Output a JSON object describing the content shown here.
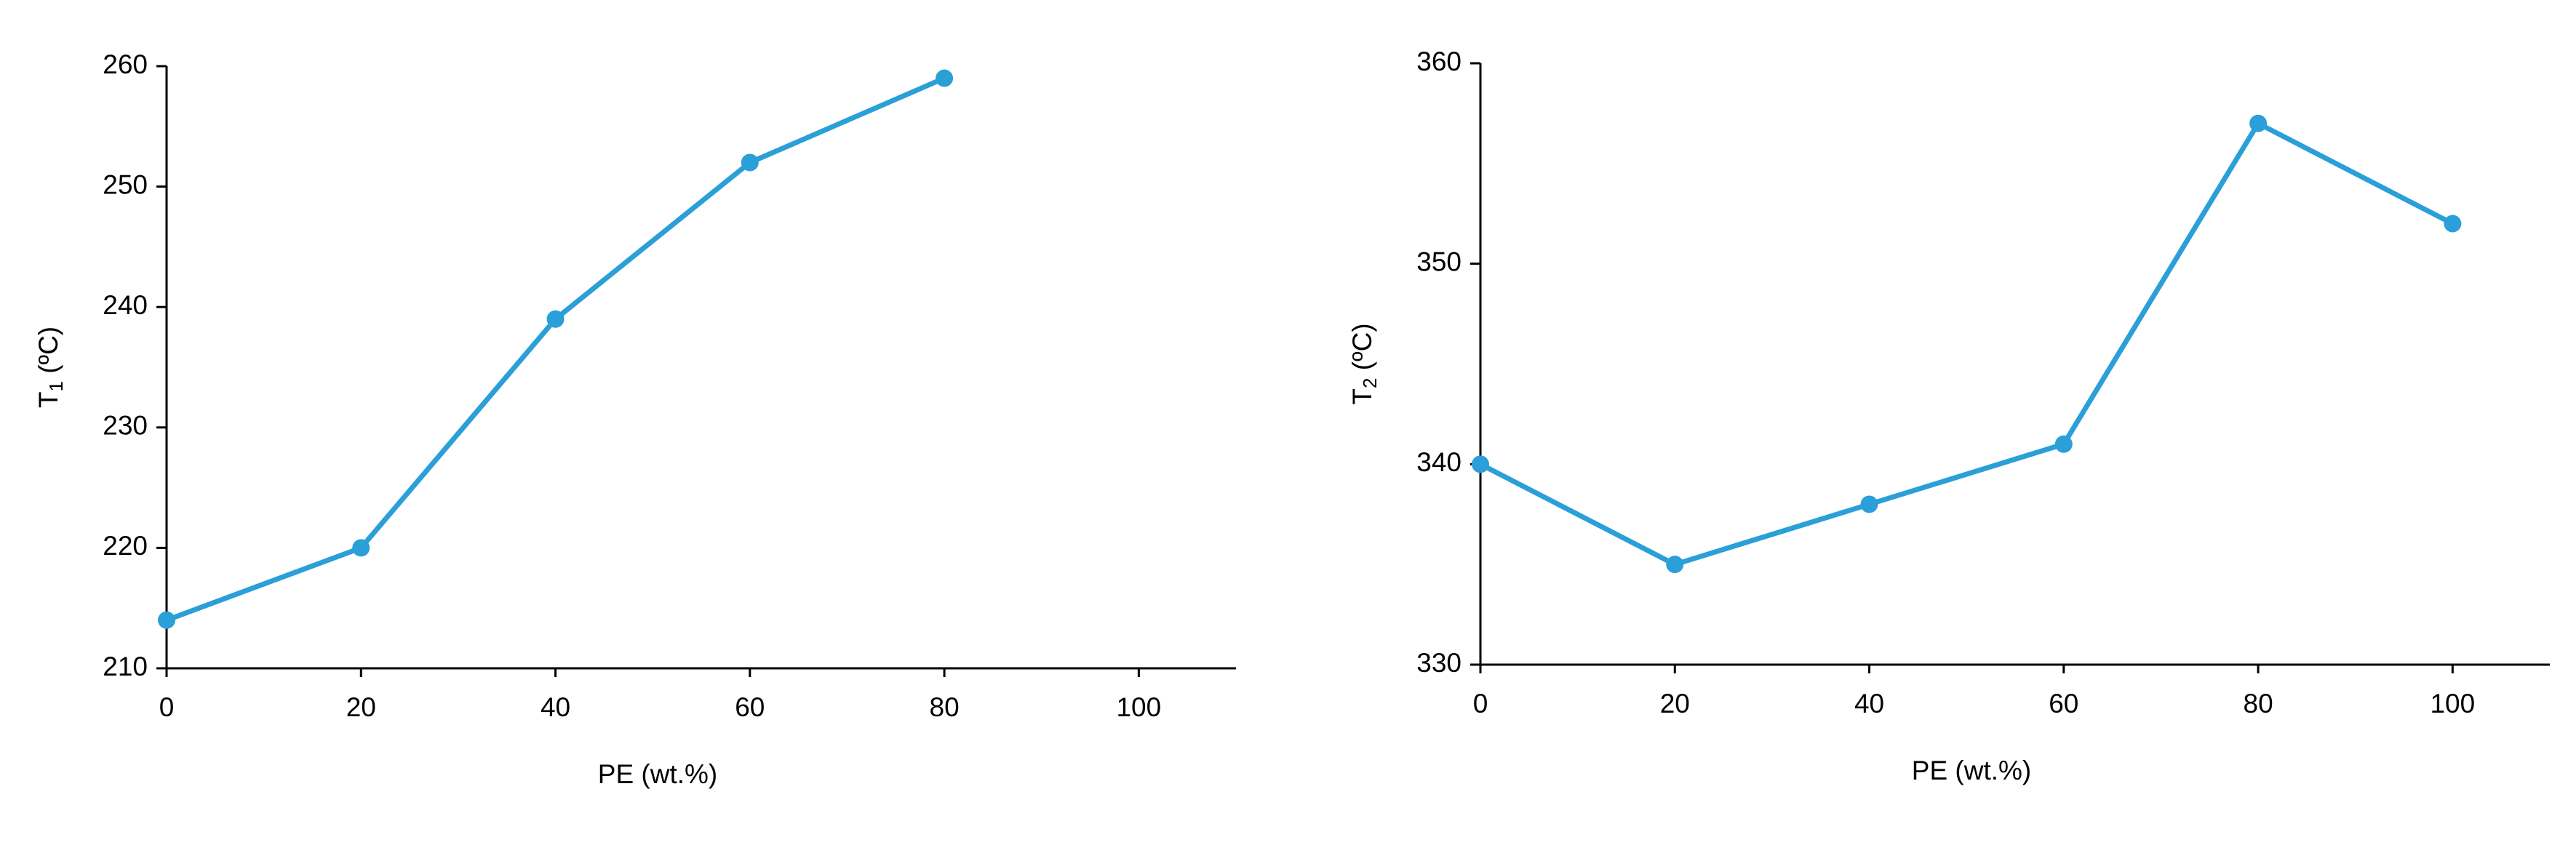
{
  "chart_data": [
    {
      "type": "line",
      "xlabel": "PE (wt.%)",
      "ylabel": {
        "text": "T",
        "subscript": "1",
        "suffix": " (ºC)"
      },
      "x": [
        0,
        20,
        40,
        60,
        80
      ],
      "series": [
        {
          "color": "#2a9fd8",
          "values": [
            214,
            220,
            239,
            252,
            259
          ]
        }
      ],
      "xlim": [
        0,
        110
      ],
      "xticks": [
        0,
        20,
        40,
        60,
        80,
        100
      ],
      "ylim": [
        210,
        260
      ],
      "yticks": [
        210,
        220,
        230,
        240,
        250,
        260
      ],
      "grid": false
    },
    {
      "type": "line",
      "xlabel": "PE (wt.%)",
      "ylabel": {
        "text": "T",
        "subscript": "2",
        "suffix": " (ºC)"
      },
      "x": [
        0,
        20,
        40,
        60,
        80,
        100
      ],
      "series": [
        {
          "color": "#2a9fd8",
          "values": [
            340,
            335,
            338,
            341,
            357,
            352
          ]
        }
      ],
      "xlim": [
        0,
        110
      ],
      "xticks": [
        0,
        20,
        40,
        60,
        80,
        100
      ],
      "ylim": [
        330,
        360
      ],
      "yticks": [
        330,
        340,
        350,
        360
      ],
      "grid": false
    }
  ]
}
